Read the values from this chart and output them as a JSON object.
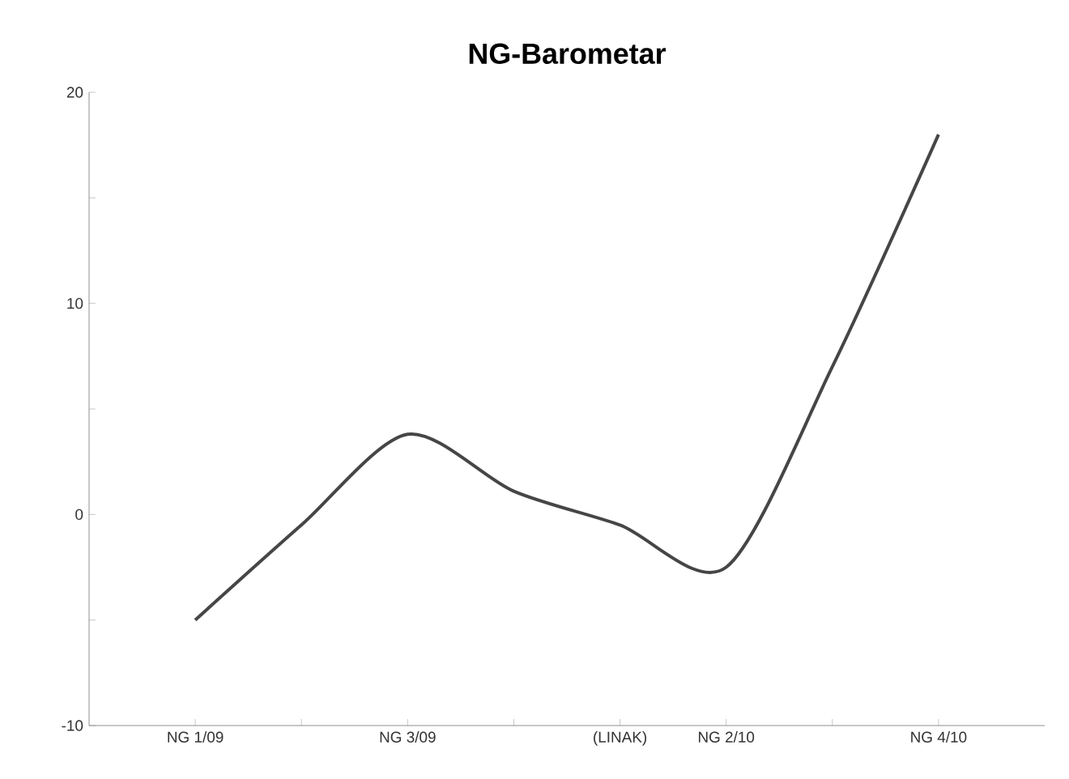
{
  "chart_data": {
    "type": "line",
    "title": "NG-Barometar",
    "categories": [
      "NG 1/09",
      null,
      "NG 3/09",
      null,
      "(LINAK)",
      "NG 2/10",
      null,
      "NG 4/10"
    ],
    "series": [
      {
        "color": "#464646",
        "values": [
          -5,
          -0.5,
          3.8,
          1.1,
          -0.5,
          -2.5,
          7,
          18
        ]
      }
    ],
    "ylim": [
      -10,
      20
    ],
    "yticks": [
      -10,
      {
        "value": -5,
        "label": null
      },
      0,
      {
        "value": 5,
        "label": null
      },
      10,
      {
        "value": 15,
        "label": null
      },
      20
    ],
    "grid": false,
    "legend": false,
    "marker": "none",
    "line_style": "solid"
  }
}
